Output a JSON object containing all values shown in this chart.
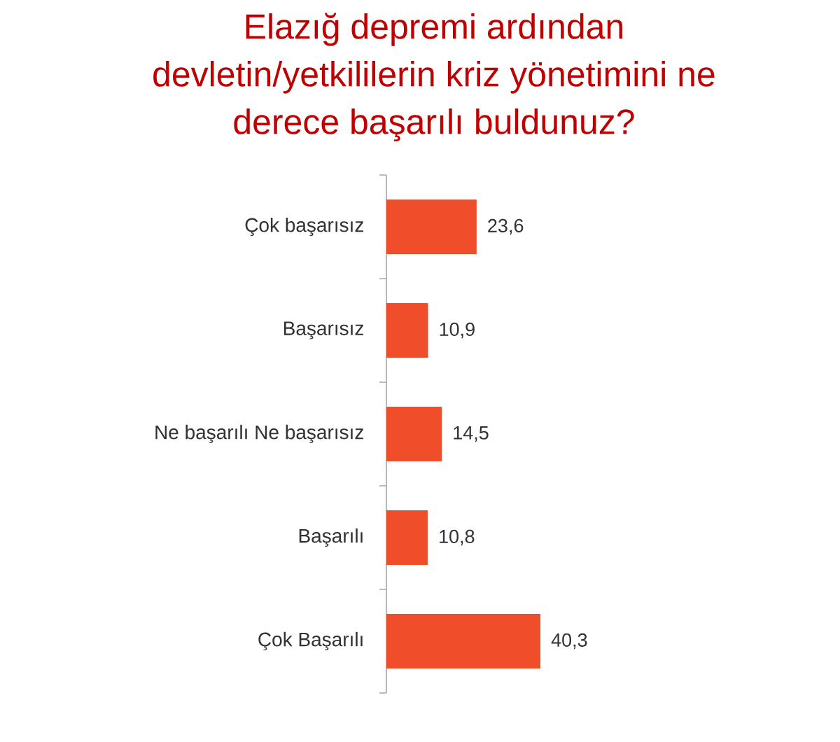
{
  "chart_data": {
    "type": "bar",
    "orientation": "horizontal",
    "title": "Elazığ depremi ardından devletin/yetkililerin kriz yönetimini ne derece başarılı buldunuz?",
    "categories": [
      "Çok başarısız",
      "Başarısız",
      "Ne başarılı Ne başarısız",
      "Başarılı",
      "Çok Başarılı"
    ],
    "values": [
      23.6,
      10.9,
      14.5,
      10.8,
      40.3
    ],
    "value_labels": [
      "23,6",
      "10,9",
      "14,5",
      "10,8",
      "40,3"
    ],
    "color": "#f04e2b",
    "tick_labels": "y"
  }
}
